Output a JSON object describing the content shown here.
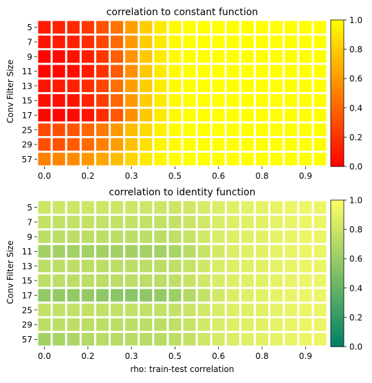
{
  "chart_data": [
    {
      "type": "heatmap",
      "title": "correlation to constant function",
      "xlabel": "",
      "ylabel": "Conv Filter Size",
      "colormap": "autumn",
      "colorbar": {
        "min": 0.0,
        "max": 1.0,
        "ticks": [
          "0.0",
          "0.2",
          "0.4",
          "0.6",
          "0.8",
          "1.0"
        ]
      },
      "x_ticks": [
        {
          "label": "0.0",
          "col": 0
        },
        {
          "label": "0.2",
          "col": 3
        },
        {
          "label": "0.3",
          "col": 6
        },
        {
          "label": "0.5",
          "col": 9
        },
        {
          "label": "0.6",
          "col": 12
        },
        {
          "label": "0.8",
          "col": 15
        },
        {
          "label": "0.9",
          "col": 18
        }
      ],
      "rows": [
        "5",
        "7",
        "9",
        "11",
        "13",
        "15",
        "17",
        "25",
        "29",
        "57"
      ],
      "values": [
        [
          0.1,
          0.13,
          0.16,
          0.22,
          0.32,
          0.45,
          0.62,
          0.8,
          0.92,
          0.98,
          1.0,
          1.0,
          1.0,
          1.0,
          1.0,
          1.0,
          1.0,
          1.0,
          1.0,
          1.0
        ],
        [
          0.08,
          0.1,
          0.13,
          0.18,
          0.28,
          0.42,
          0.6,
          0.8,
          0.92,
          0.98,
          1.0,
          1.0,
          1.0,
          1.0,
          1.0,
          1.0,
          1.0,
          1.0,
          1.0,
          1.0
        ],
        [
          0.02,
          0.04,
          0.07,
          0.12,
          0.22,
          0.38,
          0.58,
          0.78,
          0.92,
          0.98,
          1.0,
          1.0,
          1.0,
          1.0,
          1.0,
          1.0,
          1.0,
          1.0,
          1.0,
          1.0
        ],
        [
          0.02,
          0.03,
          0.05,
          0.1,
          0.2,
          0.36,
          0.56,
          0.78,
          0.92,
          0.98,
          1.0,
          1.0,
          1.0,
          1.0,
          1.0,
          1.0,
          1.0,
          1.0,
          1.0,
          1.0
        ],
        [
          0.08,
          0.1,
          0.13,
          0.18,
          0.28,
          0.44,
          0.62,
          0.8,
          0.93,
          0.98,
          1.0,
          1.0,
          1.0,
          1.0,
          1.0,
          1.0,
          1.0,
          1.0,
          1.0,
          1.0
        ],
        [
          0.04,
          0.06,
          0.08,
          0.14,
          0.24,
          0.4,
          0.6,
          0.8,
          0.92,
          0.98,
          1.0,
          1.0,
          1.0,
          1.0,
          1.0,
          1.0,
          1.0,
          1.0,
          1.0,
          1.0
        ],
        [
          0.02,
          0.02,
          0.04,
          0.08,
          0.18,
          0.34,
          0.56,
          0.78,
          0.92,
          0.98,
          1.0,
          1.0,
          1.0,
          1.0,
          1.0,
          1.0,
          1.0,
          1.0,
          1.0,
          1.0
        ],
        [
          0.28,
          0.3,
          0.34,
          0.4,
          0.48,
          0.6,
          0.74,
          0.86,
          0.95,
          0.99,
          1.0,
          1.0,
          1.0,
          1.0,
          1.0,
          1.0,
          1.0,
          1.0,
          1.0,
          1.0
        ],
        [
          0.3,
          0.32,
          0.36,
          0.42,
          0.5,
          0.62,
          0.76,
          0.88,
          0.96,
          0.99,
          1.0,
          1.0,
          1.0,
          1.0,
          1.0,
          1.0,
          1.0,
          1.0,
          1.0,
          1.0
        ],
        [
          0.5,
          0.52,
          0.55,
          0.6,
          0.66,
          0.74,
          0.84,
          0.92,
          0.97,
          1.0,
          1.0,
          1.0,
          1.0,
          1.0,
          1.0,
          1.0,
          1.0,
          1.0,
          1.0,
          1.0
        ]
      ]
    },
    {
      "type": "heatmap",
      "title": "correlation to identity function",
      "xlabel": "rho: train-test correlation",
      "ylabel": "Conv Filter Size",
      "colormap": "summer",
      "colorbar": {
        "min": 0.0,
        "max": 1.0,
        "ticks": [
          "0.0",
          "0.2",
          "0.4",
          "0.6",
          "0.8",
          "1.0"
        ]
      },
      "x_ticks": [
        {
          "label": "0.0",
          "col": 0
        },
        {
          "label": "0.2",
          "col": 3
        },
        {
          "label": "0.3",
          "col": 6
        },
        {
          "label": "0.5",
          "col": 9
        },
        {
          "label": "0.6",
          "col": 12
        },
        {
          "label": "0.8",
          "col": 15
        },
        {
          "label": "0.9",
          "col": 18
        }
      ],
      "rows": [
        "5",
        "7",
        "9",
        "11",
        "13",
        "15",
        "17",
        "25",
        "29",
        "57"
      ],
      "values": [
        [
          0.8,
          0.8,
          0.8,
          0.8,
          0.8,
          0.8,
          0.8,
          0.8,
          0.8,
          0.8,
          0.82,
          0.84,
          0.86,
          0.88,
          0.89,
          0.9,
          0.91,
          0.92,
          0.93,
          0.93
        ],
        [
          0.76,
          0.76,
          0.76,
          0.76,
          0.76,
          0.76,
          0.76,
          0.76,
          0.76,
          0.77,
          0.79,
          0.82,
          0.85,
          0.87,
          0.88,
          0.89,
          0.9,
          0.91,
          0.92,
          0.92
        ],
        [
          0.74,
          0.74,
          0.74,
          0.74,
          0.74,
          0.74,
          0.74,
          0.74,
          0.74,
          0.75,
          0.78,
          0.82,
          0.85,
          0.87,
          0.88,
          0.89,
          0.9,
          0.91,
          0.92,
          0.92
        ],
        [
          0.64,
          0.64,
          0.64,
          0.64,
          0.64,
          0.64,
          0.64,
          0.64,
          0.64,
          0.66,
          0.72,
          0.78,
          0.83,
          0.86,
          0.88,
          0.89,
          0.9,
          0.91,
          0.92,
          0.92
        ],
        [
          0.74,
          0.74,
          0.74,
          0.74,
          0.74,
          0.74,
          0.74,
          0.74,
          0.74,
          0.75,
          0.78,
          0.82,
          0.85,
          0.87,
          0.88,
          0.89,
          0.9,
          0.91,
          0.92,
          0.92
        ],
        [
          0.74,
          0.74,
          0.74,
          0.74,
          0.74,
          0.74,
          0.74,
          0.74,
          0.74,
          0.75,
          0.78,
          0.82,
          0.85,
          0.87,
          0.88,
          0.89,
          0.9,
          0.91,
          0.92,
          0.92
        ],
        [
          0.58,
          0.58,
          0.58,
          0.58,
          0.56,
          0.54,
          0.54,
          0.56,
          0.58,
          0.62,
          0.7,
          0.77,
          0.82,
          0.86,
          0.88,
          0.89,
          0.9,
          0.91,
          0.92,
          0.92
        ],
        [
          0.76,
          0.76,
          0.76,
          0.76,
          0.76,
          0.76,
          0.76,
          0.76,
          0.76,
          0.77,
          0.79,
          0.82,
          0.85,
          0.87,
          0.88,
          0.89,
          0.9,
          0.91,
          0.92,
          0.92
        ],
        [
          0.74,
          0.74,
          0.74,
          0.74,
          0.74,
          0.74,
          0.74,
          0.74,
          0.74,
          0.75,
          0.78,
          0.82,
          0.85,
          0.87,
          0.88,
          0.89,
          0.9,
          0.91,
          0.92,
          0.92
        ],
        [
          0.64,
          0.66,
          0.68,
          0.7,
          0.72,
          0.72,
          0.72,
          0.72,
          0.72,
          0.74,
          0.77,
          0.81,
          0.84,
          0.86,
          0.88,
          0.89,
          0.9,
          0.91,
          0.92,
          0.92
        ]
      ]
    }
  ]
}
